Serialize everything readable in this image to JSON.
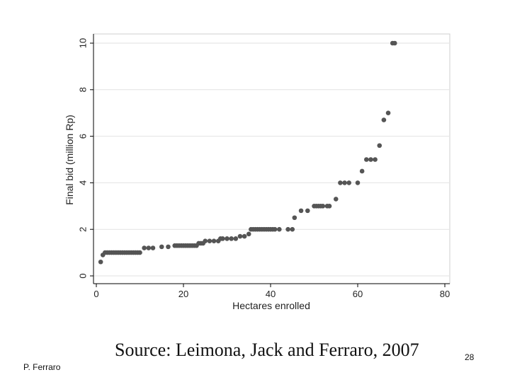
{
  "chart_data": {
    "type": "scatter",
    "title": "",
    "xlabel": "Hectares enrolled",
    "ylabel": "Final bid (million Rp)",
    "xlim": [
      0,
      80
    ],
    "ylim": [
      0,
      10
    ],
    "xticks": [
      0,
      20,
      40,
      60,
      80
    ],
    "yticks": [
      0,
      2,
      4,
      6,
      8,
      10
    ],
    "grid": true,
    "legend": "none",
    "point_color": "#555555",
    "x": [
      1,
      1.5,
      2,
      2.5,
      3,
      3.5,
      4,
      4.5,
      5,
      5.5,
      6,
      6.5,
      7,
      7.5,
      8,
      8.5,
      9,
      9.5,
      10,
      11,
      12,
      13,
      15,
      16.5,
      18,
      18.5,
      19,
      19.5,
      20,
      20.5,
      21,
      21.5,
      22,
      22.5,
      23,
      23.5,
      24,
      24.5,
      25,
      26,
      27,
      28,
      28.5,
      29,
      30,
      31,
      32,
      33,
      34,
      35,
      35.5,
      36,
      36.5,
      37,
      37.5,
      38,
      38.5,
      39,
      39.5,
      40,
      40.5,
      41,
      42,
      44,
      45,
      45.5,
      47,
      48.5,
      50,
      50.5,
      51,
      51.5,
      52,
      53,
      53.5,
      55,
      56,
      57,
      58,
      60,
      61,
      62,
      63,
      64,
      65,
      66,
      67,
      68,
      68.5
    ],
    "y": [
      0.6,
      0.9,
      1,
      1,
      1,
      1,
      1,
      1,
      1,
      1,
      1,
      1,
      1,
      1,
      1,
      1,
      1,
      1,
      1,
      1.2,
      1.2,
      1.2,
      1.25,
      1.25,
      1.3,
      1.3,
      1.3,
      1.3,
      1.3,
      1.3,
      1.3,
      1.3,
      1.3,
      1.3,
      1.3,
      1.4,
      1.4,
      1.4,
      1.5,
      1.5,
      1.5,
      1.5,
      1.6,
      1.6,
      1.6,
      1.6,
      1.6,
      1.7,
      1.7,
      1.8,
      2,
      2,
      2,
      2,
      2,
      2,
      2,
      2,
      2,
      2,
      2,
      2,
      2,
      2,
      2,
      2.5,
      2.8,
      2.8,
      3,
      3,
      3,
      3,
      3,
      3,
      3,
      3.3,
      4,
      4,
      4,
      4,
      4.5,
      5,
      5,
      5,
      5.6,
      6.7,
      7,
      10,
      10
    ]
  },
  "footer": {
    "source": "Source: Leimona, Jack and Ferraro, 2007",
    "author": "P. Ferraro",
    "page_number": "28"
  }
}
